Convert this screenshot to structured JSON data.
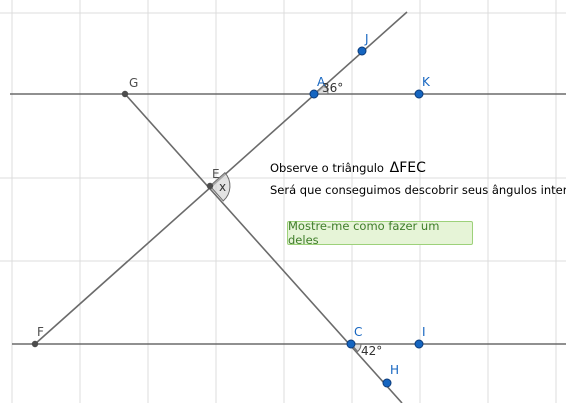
{
  "points": {
    "G": "G",
    "A": "A",
    "K": "K",
    "J": "J",
    "E": "E",
    "F": "F",
    "C": "C",
    "I": "I",
    "H": "H"
  },
  "angles": {
    "a_top": "36°",
    "c_bottom": "42°",
    "e_x": "x"
  },
  "text": {
    "observe": "Observe o triângulo",
    "triangle": "ΔFEC",
    "question": "Será que conseguimos descobrir seus ângulos internos?"
  },
  "button": {
    "label": "Mostre-me como fazer um deles"
  },
  "colors": {
    "grid": "#d9d9d9",
    "line": "#6b6b6b",
    "blue_point": "#1565c0",
    "dark_point": "#4d4d4d",
    "button_bg": "#e6f4d7",
    "button_text": "#3f7d2a"
  }
}
